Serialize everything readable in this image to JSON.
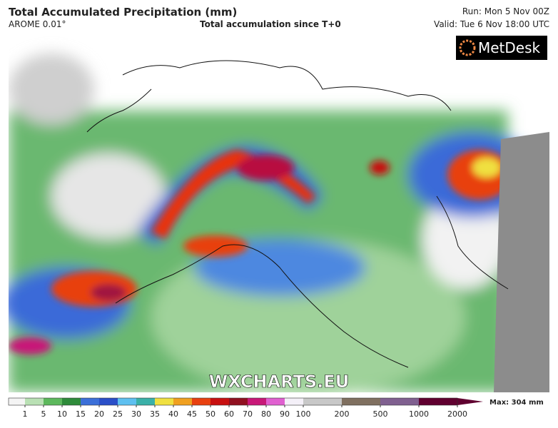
{
  "header": {
    "title": "Total Accumulated Precipitation (mm)",
    "model": "AROME 0.01°",
    "subtitle": "Total accumulation since T+0",
    "run": "Run: Mon 5 Nov 00Z",
    "valid": "Valid: Tue 6 Nov 18:00 UTC"
  },
  "map": {
    "logo": "MetDesk",
    "watermark": "WXCHARTS.EU"
  },
  "legend": {
    "ticks": [
      1,
      5,
      10,
      15,
      20,
      25,
      30,
      35,
      40,
      45,
      50,
      60,
      70,
      80,
      90,
      100,
      200,
      500,
      1000,
      2000
    ],
    "colors": [
      "#f4f4f4",
      "#b9e0b4",
      "#5cb85c",
      "#2e8b3a",
      "#3b6fd8",
      "#2a4fc8",
      "#5ec0f0",
      "#3ab0a8",
      "#f0e040",
      "#f0a020",
      "#e84010",
      "#c81010",
      "#901020",
      "#c81878",
      "#e060d0",
      "#f4f0f8",
      "#c8c8c8",
      "#807060",
      "#806090",
      "#600030"
    ],
    "max_label": "Max: 304 mm"
  }
}
